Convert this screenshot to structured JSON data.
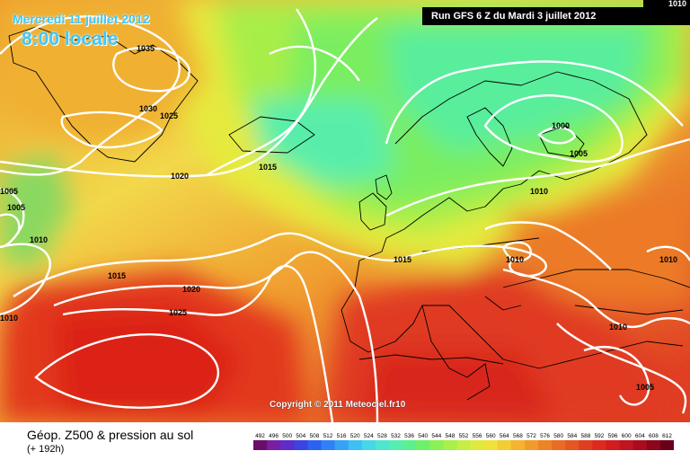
{
  "header": {
    "date_label": "Mercredi 11 juillet 2012",
    "time_label": "8:00 locale",
    "run_label": "Run GFS 6 Z du Mardi 3 juillet 2012",
    "corner_value": "1010"
  },
  "map": {
    "copyright": "Copyright © 2011 Meteociel.fr10",
    "isobar_color": "#ffffff",
    "isobar_labels": [
      "1035",
      "1030",
      "1025",
      "1020",
      "1015",
      "1005",
      "1005",
      "1010",
      "1015",
      "1020",
      "1025",
      "1010",
      "1015",
      "1000",
      "1005",
      "1010",
      "1010",
      "1010",
      "1010",
      "1005"
    ]
  },
  "footer": {
    "title": "Géop. Z500 & pression au sol",
    "subtitle": "(+ 192h)"
  },
  "legend": {
    "values": [
      "492",
      "496",
      "500",
      "504",
      "508",
      "512",
      "516",
      "520",
      "524",
      "528",
      "532",
      "536",
      "540",
      "544",
      "548",
      "552",
      "556",
      "560",
      "564",
      "568",
      "572",
      "576",
      "580",
      "584",
      "588",
      "592",
      "596",
      "600",
      "604",
      "608",
      "612"
    ],
    "colors": [
      "#6b0d6b",
      "#7a1fa3",
      "#5e2cc8",
      "#3b44e0",
      "#2a62f2",
      "#2f82f5",
      "#36a2f5",
      "#3fc0f2",
      "#46d7e8",
      "#4ee6cf",
      "#56eeb0",
      "#5cf08e",
      "#6ff06a",
      "#8af056",
      "#a8f04a",
      "#c6ee44",
      "#e0ea3e",
      "#f0e23a",
      "#f4cc34",
      "#f4b42e",
      "#f09c2a",
      "#ec8426",
      "#e86c24",
      "#e45622",
      "#e03e20",
      "#dc2a20",
      "#d21c20",
      "#c01420",
      "#a80c1e",
      "#8c061c",
      "#6a0018"
    ]
  }
}
